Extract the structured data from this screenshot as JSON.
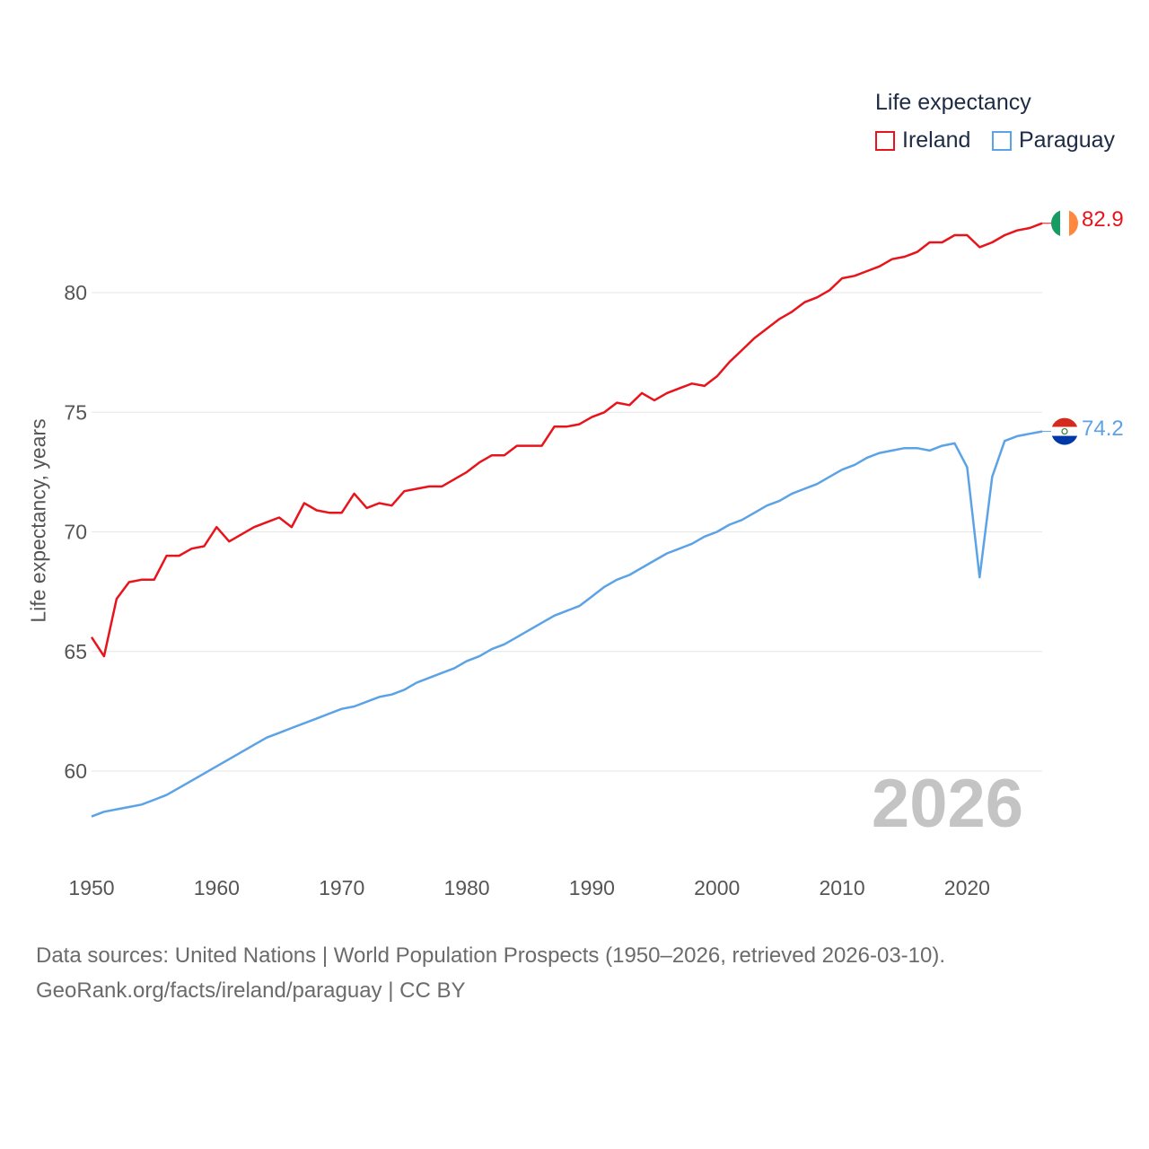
{
  "legend": {
    "title": "Life expectancy",
    "items": [
      {
        "label": "Ireland",
        "color": "#e8141c"
      },
      {
        "label": "Paraguay",
        "color": "#5ba3e6"
      }
    ]
  },
  "year_watermark": "2026",
  "end_labels": {
    "ireland": "82.9",
    "paraguay": "74.2"
  },
  "footer": {
    "line1": "Data sources: United Nations | World Population Prospects (1950–2026, retrieved 2026-03-10).",
    "line2": "GeoRank.org/facts/ireland/paraguay | CC BY"
  },
  "chart_data": {
    "type": "line",
    "title": "Life expectancy",
    "xlabel": "",
    "ylabel": "Life expectancy, years",
    "xlim": [
      1950,
      2026
    ],
    "ylim": [
      58,
      83
    ],
    "x_ticks": [
      "1950",
      "1960",
      "1970",
      "1980",
      "1990",
      "2000",
      "2010",
      "2020"
    ],
    "y_ticks": [
      "60",
      "65",
      "70",
      "75",
      "80"
    ],
    "grid": true,
    "x": [
      1950,
      1951,
      1952,
      1953,
      1954,
      1955,
      1956,
      1957,
      1958,
      1959,
      1960,
      1961,
      1962,
      1963,
      1964,
      1965,
      1966,
      1967,
      1968,
      1969,
      1970,
      1971,
      1972,
      1973,
      1974,
      1975,
      1976,
      1977,
      1978,
      1979,
      1980,
      1981,
      1982,
      1983,
      1984,
      1985,
      1986,
      1987,
      1988,
      1989,
      1990,
      1991,
      1992,
      1993,
      1994,
      1995,
      1996,
      1997,
      1998,
      1999,
      2000,
      2001,
      2002,
      2003,
      2004,
      2005,
      2006,
      2007,
      2008,
      2009,
      2010,
      2011,
      2012,
      2013,
      2014,
      2015,
      2016,
      2017,
      2018,
      2019,
      2020,
      2021,
      2022,
      2023,
      2024,
      2025,
      2026
    ],
    "series": [
      {
        "name": "Ireland",
        "color": "#e8141c",
        "values": [
          65.6,
          64.8,
          67.2,
          67.9,
          68.0,
          68.0,
          69.0,
          69.0,
          69.3,
          69.4,
          70.2,
          69.6,
          69.9,
          70.2,
          70.4,
          70.6,
          70.2,
          71.2,
          70.9,
          70.8,
          70.8,
          71.6,
          71.0,
          71.2,
          71.1,
          71.7,
          71.8,
          71.9,
          71.9,
          72.2,
          72.5,
          72.9,
          73.2,
          73.2,
          73.6,
          73.6,
          73.6,
          74.4,
          74.4,
          74.5,
          74.8,
          75.0,
          75.4,
          75.3,
          75.8,
          75.5,
          75.8,
          76.0,
          76.2,
          76.1,
          76.5,
          77.1,
          77.6,
          78.1,
          78.5,
          78.9,
          79.2,
          79.6,
          79.8,
          80.1,
          80.6,
          80.7,
          80.9,
          81.1,
          81.4,
          81.5,
          81.7,
          82.1,
          82.1,
          82.4,
          82.4,
          81.9,
          82.1,
          82.4,
          82.6,
          82.7,
          82.9
        ]
      },
      {
        "name": "Paraguay",
        "color": "#5ba3e6",
        "values": [
          58.1,
          58.3,
          58.4,
          58.5,
          58.6,
          58.8,
          59.0,
          59.3,
          59.6,
          59.9,
          60.2,
          60.5,
          60.8,
          61.1,
          61.4,
          61.6,
          61.8,
          62.0,
          62.2,
          62.4,
          62.6,
          62.7,
          62.9,
          63.1,
          63.2,
          63.4,
          63.7,
          63.9,
          64.1,
          64.3,
          64.6,
          64.8,
          65.1,
          65.3,
          65.6,
          65.9,
          66.2,
          66.5,
          66.7,
          66.9,
          67.3,
          67.7,
          68.0,
          68.2,
          68.5,
          68.8,
          69.1,
          69.3,
          69.5,
          69.8,
          70.0,
          70.3,
          70.5,
          70.8,
          71.1,
          71.3,
          71.6,
          71.8,
          72.0,
          72.3,
          72.6,
          72.8,
          73.1,
          73.3,
          73.4,
          73.5,
          73.5,
          73.4,
          73.6,
          73.7,
          72.7,
          68.1,
          72.3,
          73.8,
          74.0,
          74.1,
          74.2
        ]
      }
    ]
  }
}
